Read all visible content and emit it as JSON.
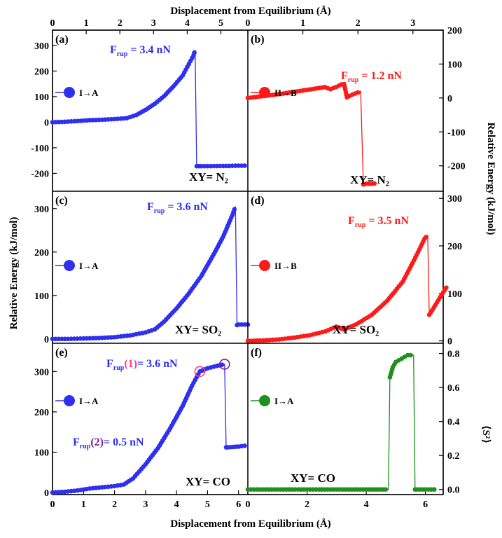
{
  "figure": {
    "xlabel": "Displacement from Equilibrium (Å)",
    "ylabel_left": "Relative Energy (kJ/mol)",
    "ylabel_right": "Relative Energy (kJ/mol)",
    "ylabel_s2": "⟨S²⟩",
    "top_axis_left_ticks": [
      "0",
      "1",
      "2",
      "3",
      "4",
      "5"
    ],
    "top_axis_right_ticks": [
      "0",
      "1",
      "2",
      "3"
    ]
  },
  "colors": {
    "blue": "#2f2ff0",
    "red": "#ff1a1a",
    "green": "#1f8f1f",
    "magenta": "#ff3d8a",
    "purple": "#7a1f8a"
  },
  "chart_data": [
    {
      "id": "a",
      "type": "line",
      "panel_label": "(a)",
      "legend": "I→A",
      "color": "blue",
      "force_label": "3.4 nN",
      "xy_label": "N₂",
      "xlim": [
        0,
        6.3
      ],
      "ylim": [
        -270,
        360
      ],
      "yticks": [
        "-200",
        "-100",
        "0",
        "100",
        "200",
        "300"
      ],
      "series": [
        {
          "name": "I→A",
          "x": [
            0,
            0.3,
            0.6,
            0.9,
            1.2,
            1.5,
            1.8,
            2.1,
            2.4,
            2.7,
            3.0,
            3.3,
            3.6,
            3.9,
            4.2,
            4.4,
            4.55,
            4.6,
            4.65,
            4.8,
            5.1,
            5.4,
            5.7,
            6.0,
            6.2
          ],
          "y": [
            0,
            1,
            3,
            5,
            8,
            9,
            11,
            13,
            16,
            28,
            48,
            72,
            102,
            140,
            183,
            228,
            262,
            282,
            -172,
            -172,
            -172,
            -171,
            -171,
            -170,
            -170
          ]
        }
      ]
    },
    {
      "id": "b",
      "type": "line",
      "panel_label": "(b)",
      "legend": "II→B",
      "color": "red",
      "force_label": "1.2 nN",
      "xy_label": "N₂",
      "xlim": [
        0,
        3.55
      ],
      "ylim": [
        -275,
        200
      ],
      "yticks": [
        "-200",
        "-100",
        "0",
        "100",
        "200"
      ],
      "series": [
        {
          "name": "II→B",
          "x": [
            0,
            0.2,
            0.4,
            0.6,
            0.8,
            1.0,
            1.2,
            1.4,
            1.5,
            1.6,
            1.7,
            1.75,
            1.8,
            1.9,
            2.0,
            2.05,
            2.1,
            2.15,
            2.25,
            2.3
          ],
          "y": [
            0,
            4,
            8,
            12,
            17,
            22,
            27,
            32,
            26,
            32,
            40,
            41,
            2,
            10,
            16,
            20,
            -255,
            -253,
            -253,
            -252
          ]
        }
      ]
    },
    {
      "id": "c",
      "type": "line",
      "panel_label": "(c)",
      "legend": "I→A",
      "color": "blue",
      "force_label": "3.6 nN",
      "xy_label": "SO₂",
      "xlim": [
        0,
        6.3
      ],
      "ylim": [
        -10,
        340
      ],
      "yticks": [
        "0",
        "100",
        "200",
        "300"
      ],
      "series": [
        {
          "name": "I→A",
          "x": [
            0,
            0.5,
            1.0,
            1.5,
            2.0,
            2.5,
            3.0,
            3.3,
            3.6,
            4.0,
            4.4,
            4.8,
            5.2,
            5.5,
            5.8,
            5.9,
            5.95,
            6.0,
            6.3
          ],
          "y": [
            0,
            0,
            1,
            2,
            4,
            8,
            15,
            22,
            40,
            70,
            105,
            145,
            195,
            235,
            285,
            305,
            32,
            33,
            33
          ]
        }
      ]
    },
    {
      "id": "d",
      "type": "line",
      "panel_label": "(d)",
      "legend": "II→B",
      "color": "red",
      "force_label": "3.5 nN",
      "xy_label": "SO₂",
      "xlim": [
        0,
        6.3
      ],
      "ylim": [
        -5,
        315
      ],
      "yticks": [
        "0",
        "100",
        "200",
        "300"
      ],
      "series": [
        {
          "name": "II→B",
          "x": [
            0,
            0.5,
            1.0,
            1.5,
            2.0,
            2.5,
            2.85,
            3.1,
            3.5,
            4.0,
            4.5,
            5.0,
            5.4,
            5.7,
            5.8,
            5.85,
            6.0,
            6.2,
            6.4
          ],
          "y": [
            0,
            1,
            3,
            7,
            12,
            20,
            30,
            24,
            35,
            55,
            85,
            125,
            175,
            215,
            222,
            55,
            70,
            92,
            112
          ]
        }
      ]
    },
    {
      "id": "e",
      "type": "line",
      "panel_label": "(e)",
      "legend": "I→A",
      "color": "blue",
      "force1_label": "(1)= 3.6 nN",
      "force2_label": "(2)= 0.5 nN",
      "xy_label": "CO",
      "xlim": [
        0,
        6.3
      ],
      "ylim": [
        -5,
        370
      ],
      "xticks": [
        "0",
        "1",
        "2",
        "3",
        "4",
        "5",
        "6"
      ],
      "yticks": [
        "0",
        "100",
        "200",
        "300"
      ],
      "highlight_points": [
        {
          "x": 4.75,
          "y": 300
        },
        {
          "x": 5.55,
          "y": 318
        }
      ],
      "series": [
        {
          "name": "I→A",
          "x": [
            0,
            0.4,
            0.8,
            1.2,
            1.6,
            2.0,
            2.3,
            2.6,
            3.0,
            3.4,
            3.8,
            4.2,
            4.5,
            4.75,
            5.0,
            5.3,
            5.55,
            5.6,
            5.65,
            6.0,
            6.2
          ],
          "y": [
            0,
            2,
            5,
            10,
            13,
            16,
            20,
            35,
            70,
            110,
            160,
            215,
            265,
            300,
            308,
            314,
            318,
            112,
            112,
            114,
            116
          ]
        }
      ]
    },
    {
      "id": "f",
      "type": "line",
      "panel_label": "(f)",
      "legend": "I→A",
      "color": "green",
      "xy_label": "CO",
      "xlim": [
        0,
        6.6
      ],
      "ylim": [
        -0.03,
        0.86
      ],
      "xticks": [
        "0",
        "2",
        "4",
        "6"
      ],
      "yticks": [
        "0.0",
        "0.2",
        "0.4",
        "0.6",
        "0.8"
      ],
      "series": [
        {
          "name": "I→A",
          "x": [
            0,
            1,
            2,
            3,
            4,
            4.75,
            4.8,
            4.9,
            5.0,
            5.2,
            5.4,
            5.6,
            5.65,
            5.7,
            6.0,
            6.3
          ],
          "y": [
            0,
            0,
            0,
            0,
            0,
            0,
            0.66,
            0.72,
            0.75,
            0.77,
            0.79,
            0.79,
            0,
            0,
            0,
            0
          ]
        }
      ]
    }
  ]
}
